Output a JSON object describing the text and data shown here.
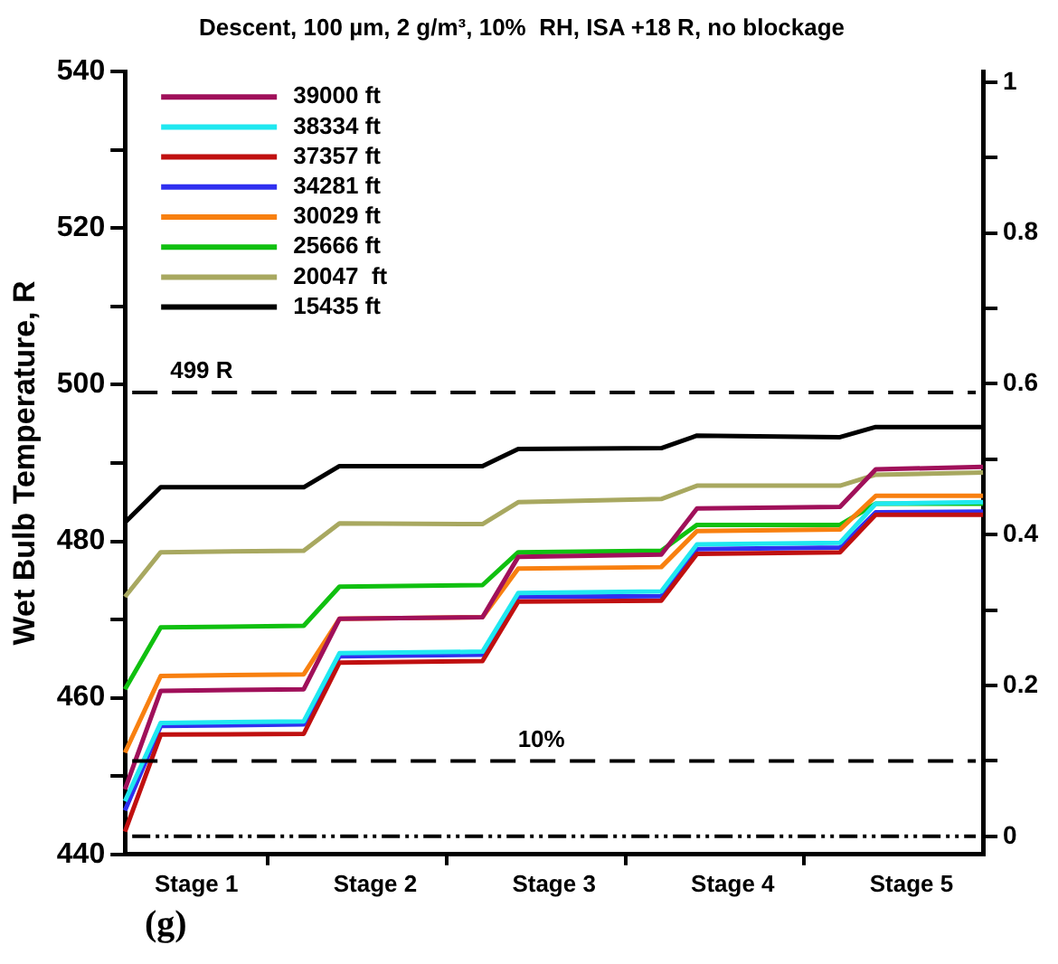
{
  "chart_data": {
    "type": "line",
    "title": "Descent, 100 µm, 2 g/m³, 10%  RH, ISA +18 R, no blockage",
    "ylabel": "Wet Bulb Temperature, R",
    "annotations": [
      "(g)"
    ],
    "categories": [
      null,
      null,
      "Stage 1",
      null,
      null,
      null,
      null,
      "Stage 2",
      null,
      null,
      null,
      null,
      "Stage 3",
      null,
      null,
      null,
      null,
      "Stage 4",
      null,
      null,
      null,
      null,
      "Stage 5",
      null,
      null
    ],
    "ylim": [
      440,
      540
    ],
    "yticks": [
      440,
      {
        "value": 450,
        "label": null
      },
      460,
      {
        "value": 470,
        "label": null
      },
      480,
      {
        "value": 490,
        "label": null
      },
      500,
      {
        "value": 510,
        "label": null
      },
      520,
      {
        "value": 530,
        "label": null
      },
      540
    ],
    "y2lim": [
      -0.024,
      1.014
    ],
    "y2ticks": [
      0,
      {
        "value": 0.1,
        "label": null
      },
      0.2,
      {
        "value": 0.3,
        "label": null
      },
      0.4,
      {
        "value": 0.5,
        "label": null
      },
      0.6,
      {
        "value": 0.7,
        "label": null
      },
      0.8,
      {
        "value": 0.9,
        "label": null
      },
      1
    ],
    "legend": "top left",
    "marker": "none",
    "line_style": "solid",
    "series": [
      {
        "name": "39000 ft",
        "color": "#a0105a",
        "values": [
          448.3,
          460.9,
          null,
          null,
          null,
          461.1,
          470.1,
          null,
          null,
          null,
          470.3,
          478.0,
          null,
          null,
          null,
          478.3,
          484.2,
          null,
          null,
          null,
          484.4,
          489.2,
          null,
          null,
          489.5
        ]
      },
      {
        "name": "38334 ft",
        "color": "#20e8f0",
        "values": [
          446.8,
          456.8,
          null,
          null,
          null,
          457.0,
          465.7,
          null,
          null,
          null,
          465.9,
          473.4,
          null,
          null,
          null,
          473.6,
          479.6,
          null,
          null,
          null,
          479.8,
          484.8,
          null,
          null,
          485.0
        ]
      },
      {
        "name": "37357 ft",
        "color": "#c01010",
        "values": [
          442.9,
          455.3,
          null,
          null,
          null,
          455.4,
          464.5,
          null,
          null,
          null,
          464.7,
          472.3,
          null,
          null,
          null,
          472.4,
          478.4,
          null,
          null,
          null,
          478.6,
          483.4,
          null,
          null,
          483.4
        ]
      },
      {
        "name": "34281 ft",
        "color": "#3030f0",
        "values": [
          445.6,
          456.4,
          null,
          null,
          null,
          456.6,
          465.3,
          null,
          null,
          null,
          465.5,
          472.9,
          null,
          null,
          null,
          473.0,
          479.0,
          null,
          null,
          null,
          479.2,
          483.7,
          null,
          null,
          483.8
        ]
      },
      {
        "name": "30029 ft",
        "color": "#f88010",
        "values": [
          453.0,
          462.8,
          null,
          null,
          null,
          463.0,
          470.1,
          null,
          null,
          null,
          470.3,
          476.5,
          null,
          null,
          null,
          476.7,
          481.3,
          null,
          null,
          null,
          481.5,
          485.8,
          null,
          null,
          485.8
        ]
      },
      {
        "name": "25666 ft",
        "color": "#10c010",
        "values": [
          461.1,
          469.0,
          null,
          null,
          null,
          469.2,
          474.2,
          null,
          null,
          null,
          474.4,
          478.6,
          null,
          null,
          null,
          478.8,
          482.1,
          null,
          null,
          null,
          482.1,
          484.8,
          null,
          null,
          484.8
        ]
      },
      {
        "name": "20047  ft",
        "color": "#a8a860",
        "values": [
          472.9,
          478.6,
          null,
          null,
          null,
          478.8,
          482.3,
          null,
          null,
          null,
          482.2,
          485.0,
          null,
          null,
          null,
          485.4,
          487.1,
          null,
          null,
          null,
          487.1,
          488.5,
          null,
          null,
          488.8
        ]
      },
      {
        "name": "15435 ft",
        "color": "#000000",
        "values": [
          482.4,
          486.9,
          null,
          null,
          null,
          486.9,
          489.6,
          null,
          null,
          null,
          489.6,
          491.8,
          null,
          null,
          null,
          491.9,
          493.5,
          null,
          null,
          null,
          493.3,
          494.6,
          null,
          null,
          494.6
        ]
      }
    ],
    "ref_lines": [
      {
        "axis": "y",
        "value": 499,
        "label": "499 R",
        "color": "#000000",
        "line_style": "dashed"
      },
      {
        "axis": "y2",
        "value": 0.1,
        "label": "10%",
        "color": "#000000",
        "line_style": "dashed"
      },
      {
        "axis": "y2",
        "value": 0,
        "label": null,
        "color": "#000000",
        "line_style": "dotted"
      }
    ]
  }
}
